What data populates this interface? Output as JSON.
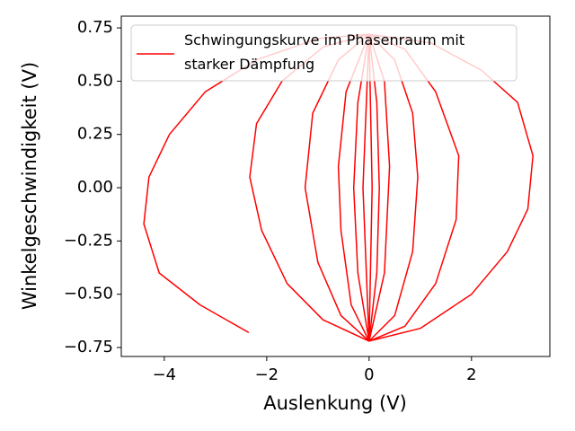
{
  "chart_data": {
    "type": "line",
    "xlabel": "Auslenkung (V)",
    "ylabel": "Winkelgeschwindigkeit (V)",
    "xlim": [
      -4.84,
      3.53
    ],
    "ylim": [
      -0.792,
      0.805
    ],
    "xticks": [
      {
        "value": -4,
        "label": "−4"
      },
      {
        "value": -2,
        "label": "−2"
      },
      0,
      2
    ],
    "yticks": [
      {
        "value": -0.75,
        "label": "−0.75"
      },
      {
        "value": -0.5,
        "label": "−0.50"
      },
      {
        "value": -0.25,
        "label": "−0.25"
      },
      {
        "value": 0,
        "label": "0.00"
      },
      {
        "value": 0.25,
        "label": "0.25"
      },
      {
        "value": 0.5,
        "label": "0.50"
      },
      {
        "value": 0.75,
        "label": "0.75"
      }
    ],
    "legend": "upper left",
    "series": [
      {
        "name": "Schwingungskurve im Phasenraum mit starker Dämpfung",
        "color": "#ff0000",
        "x": [
          -2.35,
          -3.3,
          -4.1,
          -4.4,
          -4.3,
          -3.9,
          -3.2,
          -2.2,
          -1.0,
          0,
          1.2,
          2.2,
          2.9,
          3.2,
          3.1,
          2.7,
          2.0,
          1.0,
          0,
          -0.9,
          -1.6,
          -2.1,
          -2.33,
          -2.2,
          -1.7,
          -0.9,
          0,
          0.7,
          1.3,
          1.75,
          1.7,
          1.3,
          0.7,
          0,
          -0.55,
          -1.0,
          -1.25,
          -1.1,
          -0.6,
          0,
          0.5,
          0.85,
          0.95,
          0.85,
          0.5,
          0,
          -0.35,
          -0.55,
          -0.6,
          -0.45,
          0,
          0.3,
          0.4,
          0.3,
          0,
          -0.22,
          -0.3,
          -0.22,
          0,
          0.15,
          0.2,
          0.15,
          0,
          -0.12,
          0,
          0.06,
          0
        ],
        "values": [
          -0.68,
          -0.55,
          -0.4,
          -0.17,
          0.05,
          0.25,
          0.45,
          0.6,
          0.7,
          0.72,
          0.68,
          0.55,
          0.4,
          0.15,
          -0.1,
          -0.3,
          -0.5,
          -0.66,
          -0.72,
          -0.62,
          -0.45,
          -0.2,
          0.05,
          0.3,
          0.5,
          0.66,
          0.72,
          0.65,
          0.45,
          0.15,
          -0.15,
          -0.45,
          -0.65,
          -0.72,
          -0.6,
          -0.35,
          0,
          0.35,
          0.6,
          0.72,
          0.6,
          0.35,
          0.05,
          -0.3,
          -0.6,
          -0.72,
          -0.55,
          -0.2,
          0.1,
          0.45,
          0.72,
          0.5,
          0.1,
          -0.4,
          -0.72,
          -0.4,
          0,
          0.4,
          0.72,
          0.4,
          0,
          -0.4,
          -0.72,
          0,
          0.72,
          0,
          -0.72
        ]
      }
    ]
  }
}
